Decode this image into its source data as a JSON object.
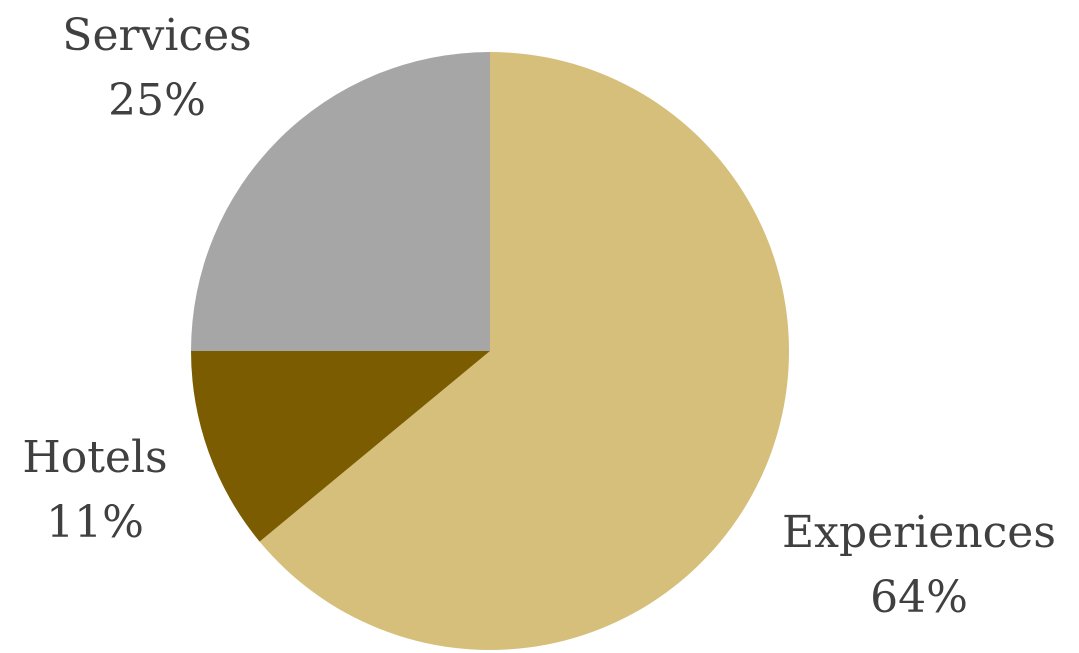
{
  "chart_data": {
    "type": "pie",
    "slices": [
      {
        "label": "Experiences",
        "value": 64,
        "value_label": "64%",
        "color": "#D6BF7B"
      },
      {
        "label": "Hotels",
        "value": 11,
        "value_label": "11%",
        "color": "#7B5C00"
      },
      {
        "label": "Services",
        "value": 25,
        "value_label": "25%",
        "color": "#A6A6A6"
      }
    ],
    "start_angle_deg": 0,
    "direction": "clockwise",
    "title": "",
    "legend": "none"
  }
}
